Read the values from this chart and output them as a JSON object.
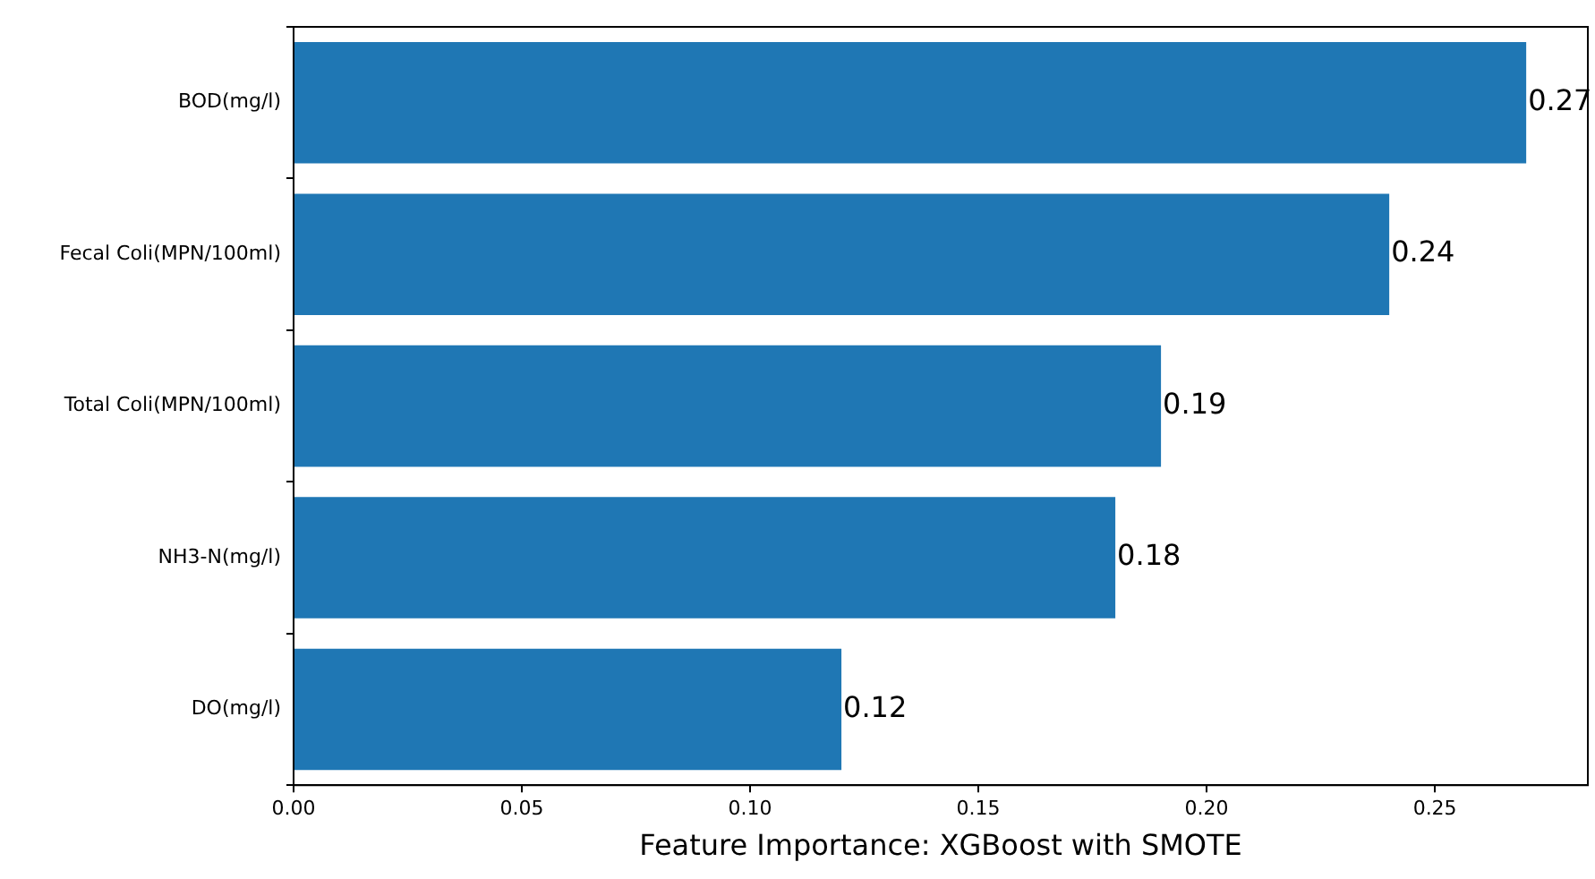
{
  "chart_data": {
    "type": "bar",
    "orientation": "horizontal",
    "xlabel": "Feature Importance: XGBoost with SMOTE",
    "categories": [
      "BOD(mg/l)",
      "Fecal Coli(MPN/100ml)",
      "Total Coli(MPN/100ml)",
      "NH3-N(mg/l)",
      "DO(mg/l)"
    ],
    "values": [
      0.27,
      0.24,
      0.19,
      0.18,
      0.12
    ],
    "color": "#1f77b4",
    "data_labels": true,
    "xlim": [
      0,
      0.2835
    ],
    "xticks": [
      {
        "value": 0,
        "label": "0.00"
      },
      {
        "value": 0.05,
        "label": "0.05"
      },
      {
        "value": 0.1,
        "label": "0.10"
      },
      {
        "value": 0.15,
        "label": "0.15"
      },
      {
        "value": 0.2,
        "label": "0.20"
      },
      {
        "value": 0.25,
        "label": "0.25"
      }
    ],
    "grid": false,
    "legend": false
  }
}
